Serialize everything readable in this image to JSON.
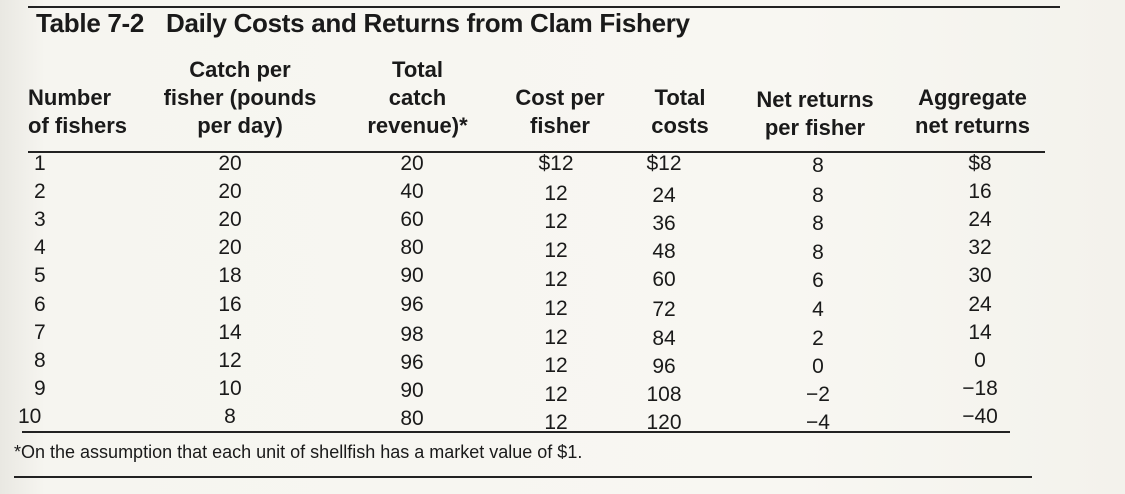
{
  "table": {
    "label": "Table 7-2",
    "title": "Daily Costs and Returns from Clam Fishery",
    "columns": [
      "Number\nof fishers",
      "Catch per\nfisher (pounds\nper day)",
      "Total\ncatch\nrevenue)*",
      "Cost per\nfisher",
      "Total\ncosts",
      "Net returns\nper fisher",
      "Aggregate\nnet returns"
    ],
    "rows": [
      [
        "1",
        "20",
        "20",
        "$12",
        "$12",
        "8",
        "$8"
      ],
      [
        "2",
        "20",
        "40",
        "12",
        "24",
        "8",
        "16"
      ],
      [
        "3",
        "20",
        "60",
        "12",
        "36",
        "8",
        "24"
      ],
      [
        "4",
        "20",
        "80",
        "12",
        "48",
        "8",
        "32"
      ],
      [
        "5",
        "18",
        "90",
        "12",
        "60",
        "6",
        "30"
      ],
      [
        "6",
        "16",
        "96",
        "12",
        "72",
        "4",
        "24"
      ],
      [
        "7",
        "14",
        "98",
        "12",
        "84",
        "2",
        "14"
      ],
      [
        "8",
        "12",
        "96",
        "12",
        "96",
        "0",
        "0"
      ],
      [
        "9",
        "10",
        "90",
        "12",
        "108",
        "−2",
        "−18"
      ],
      [
        "10",
        "8",
        "80",
        "12",
        "120",
        "−4",
        "−40"
      ]
    ],
    "footnote": "*On the assumption that each unit of shellfish has a market value of $1."
  }
}
